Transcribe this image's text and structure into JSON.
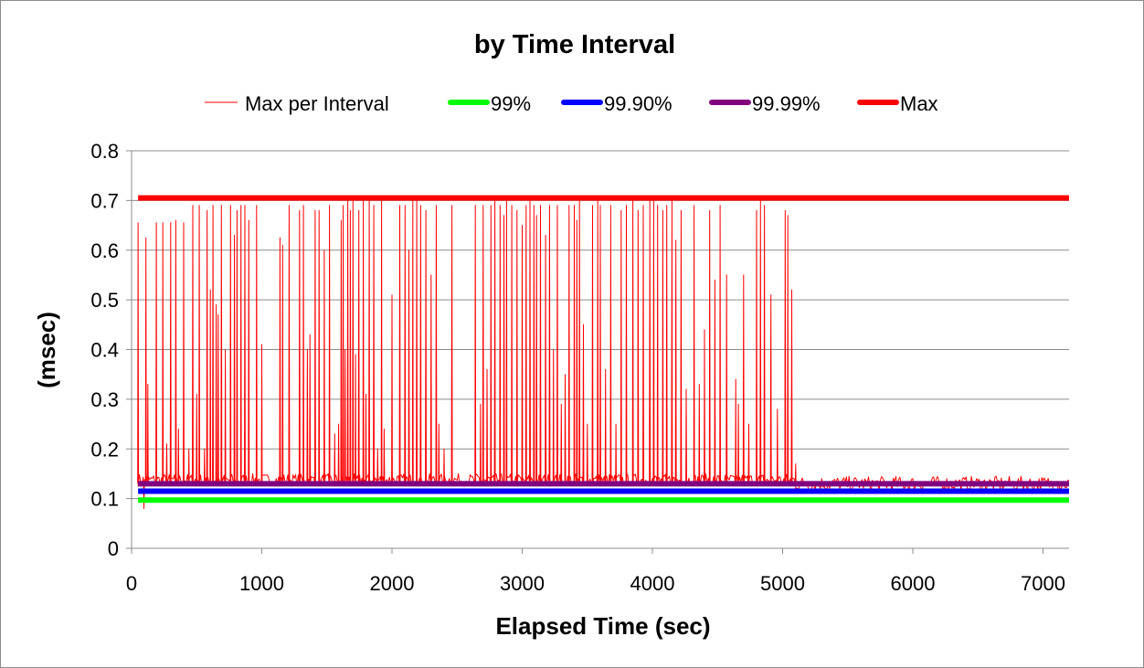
{
  "chart_data": {
    "type": "line",
    "title": "by Time Interval",
    "xlabel": "Elapsed Time (sec)",
    "ylabel": "(msec)",
    "xlim": [
      0,
      7200
    ],
    "ylim": [
      0,
      0.8
    ],
    "x_ticks": [
      "0",
      "1000",
      "2000",
      "3000",
      "4000",
      "5000",
      "6000",
      "7000"
    ],
    "y_ticks": [
      "0",
      "0.1",
      "0.2",
      "0.3",
      "0.4",
      "0.5",
      "0.6",
      "0.7",
      "0.8"
    ],
    "grid": "horizontal",
    "legend_position": "top",
    "series": [
      {
        "name": "Max per Interval",
        "color": "#ff0000",
        "style": "thin-line",
        "spikes": [
          [
            50,
            0.655
          ],
          [
            95,
            0.08
          ],
          [
            110,
            0.625
          ],
          [
            125,
            0.33
          ],
          [
            190,
            0.655
          ],
          [
            240,
            0.655
          ],
          [
            270,
            0.21
          ],
          [
            300,
            0.655
          ],
          [
            340,
            0.66
          ],
          [
            360,
            0.24
          ],
          [
            400,
            0.655
          ],
          [
            440,
            0.2
          ],
          [
            470,
            0.69
          ],
          [
            500,
            0.31
          ],
          [
            520,
            0.69
          ],
          [
            560,
            0.2
          ],
          [
            580,
            0.68
          ],
          [
            605,
            0.52
          ],
          [
            625,
            0.69
          ],
          [
            650,
            0.49
          ],
          [
            665,
            0.47
          ],
          [
            690,
            0.69
          ],
          [
            720,
            0.4
          ],
          [
            760,
            0.69
          ],
          [
            790,
            0.63
          ],
          [
            810,
            0.68
          ],
          [
            840,
            0.69
          ],
          [
            870,
            0.69
          ],
          [
            900,
            0.66
          ],
          [
            960,
            0.69
          ],
          [
            1000,
            0.41
          ],
          [
            1140,
            0.625
          ],
          [
            1160,
            0.61
          ],
          [
            1210,
            0.69
          ],
          [
            1290,
            0.68
          ],
          [
            1320,
            0.69
          ],
          [
            1350,
            0.4
          ],
          [
            1370,
            0.43
          ],
          [
            1410,
            0.68
          ],
          [
            1440,
            0.68
          ],
          [
            1480,
            0.6
          ],
          [
            1520,
            0.69
          ],
          [
            1560,
            0.23
          ],
          [
            1590,
            0.25
          ],
          [
            1610,
            0.66
          ],
          [
            1625,
            0.69
          ],
          [
            1640,
            0.4
          ],
          [
            1660,
            0.7
          ],
          [
            1680,
            0.68
          ],
          [
            1700,
            0.7
          ],
          [
            1720,
            0.39
          ],
          [
            1745,
            0.68
          ],
          [
            1780,
            0.7
          ],
          [
            1800,
            0.31
          ],
          [
            1825,
            0.7
          ],
          [
            1860,
            0.69
          ],
          [
            1890,
            0.2
          ],
          [
            1920,
            0.7
          ],
          [
            1940,
            0.24
          ],
          [
            2000,
            0.51
          ],
          [
            2060,
            0.69
          ],
          [
            2100,
            0.69
          ],
          [
            2130,
            0.6
          ],
          [
            2160,
            0.7
          ],
          [
            2190,
            0.7
          ],
          [
            2220,
            0.69
          ],
          [
            2260,
            0.68
          ],
          [
            2300,
            0.55
          ],
          [
            2340,
            0.69
          ],
          [
            2360,
            0.25
          ],
          [
            2400,
            0.2
          ],
          [
            2460,
            0.69
          ],
          [
            2640,
            0.69
          ],
          [
            2680,
            0.29
          ],
          [
            2700,
            0.69
          ],
          [
            2730,
            0.36
          ],
          [
            2760,
            0.69
          ],
          [
            2790,
            0.7
          ],
          [
            2830,
            0.69
          ],
          [
            2860,
            0.67
          ],
          [
            2880,
            0.7
          ],
          [
            2920,
            0.69
          ],
          [
            2960,
            0.68
          ],
          [
            3000,
            0.65
          ],
          [
            3030,
            0.69
          ],
          [
            3060,
            0.7
          ],
          [
            3090,
            0.69
          ],
          [
            3110,
            0.67
          ],
          [
            3140,
            0.69
          ],
          [
            3180,
            0.63
          ],
          [
            3210,
            0.69
          ],
          [
            3240,
            0.4
          ],
          [
            3270,
            0.69
          ],
          [
            3300,
            0.29
          ],
          [
            3330,
            0.35
          ],
          [
            3360,
            0.69
          ],
          [
            3400,
            0.69
          ],
          [
            3420,
            0.66
          ],
          [
            3440,
            0.7
          ],
          [
            3470,
            0.45
          ],
          [
            3500,
            0.25
          ],
          [
            3540,
            0.69
          ],
          [
            3580,
            0.7
          ],
          [
            3600,
            0.69
          ],
          [
            3640,
            0.36
          ],
          [
            3680,
            0.69
          ],
          [
            3720,
            0.25
          ],
          [
            3760,
            0.68
          ],
          [
            3800,
            0.69
          ],
          [
            3850,
            0.7
          ],
          [
            3890,
            0.68
          ],
          [
            3930,
            0.69
          ],
          [
            3980,
            0.7
          ],
          [
            4010,
            0.7
          ],
          [
            4040,
            0.69
          ],
          [
            4080,
            0.68
          ],
          [
            4110,
            0.69
          ],
          [
            4150,
            0.7
          ],
          [
            4180,
            0.62
          ],
          [
            4220,
            0.68
          ],
          [
            4260,
            0.32
          ],
          [
            4320,
            0.69
          ],
          [
            4360,
            0.33
          ],
          [
            4400,
            0.44
          ],
          [
            4440,
            0.68
          ],
          [
            4480,
            0.54
          ],
          [
            4520,
            0.69
          ],
          [
            4570,
            0.55
          ],
          [
            4640,
            0.34
          ],
          [
            4660,
            0.29
          ],
          [
            4700,
            0.55
          ],
          [
            4740,
            0.25
          ],
          [
            4800,
            0.68
          ],
          [
            4830,
            0.7
          ],
          [
            4860,
            0.69
          ],
          [
            4910,
            0.51
          ],
          [
            4960,
            0.28
          ],
          [
            5020,
            0.68
          ],
          [
            5040,
            0.67
          ],
          [
            5070,
            0.52
          ],
          [
            5100,
            0.17
          ]
        ]
      },
      {
        "name": "99%",
        "color": "#00ff00",
        "style": "thick-line",
        "value": 0.097,
        "x_range": [
          50,
          7200
        ]
      },
      {
        "name": "99.90%",
        "color": "#0000ff",
        "style": "thick-line",
        "value": 0.115,
        "x_range": [
          50,
          7200
        ]
      },
      {
        "name": "99.99%",
        "color": "#800080",
        "style": "thick-line",
        "value": 0.13,
        "x_range": [
          50,
          7200
        ]
      },
      {
        "name": "Max",
        "color": "#ff0000",
        "style": "thick-line",
        "value": 0.705,
        "x_range": [
          50,
          7200
        ]
      }
    ]
  }
}
